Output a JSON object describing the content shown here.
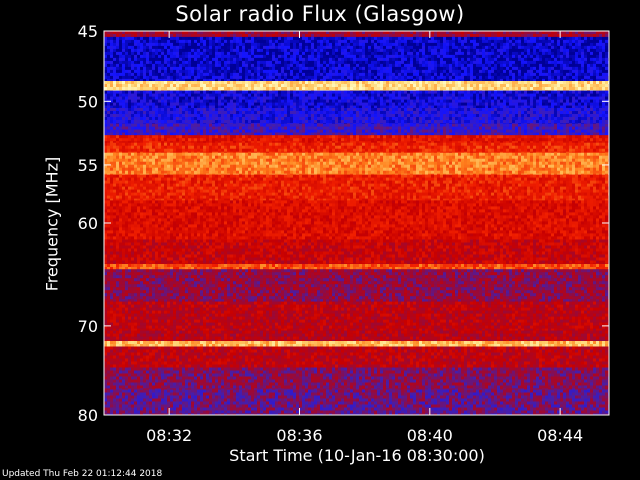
{
  "chart_data": {
    "type": "heatmap",
    "title": "Solar radio Flux (Glasgow)",
    "ylabel": "Frequency [MHz]",
    "xlabel": "Start Time (10-Jan-16 08:30:00)",
    "ylim": [
      45,
      80
    ],
    "y_ticks": [
      45,
      50,
      55,
      60,
      70,
      80
    ],
    "y_tick_labels": [
      "45",
      "50",
      "55",
      "60",
      "70",
      "80"
    ],
    "x_range_minutes": [
      0,
      15.5
    ],
    "x_ticks_minutes": [
      2,
      6,
      10,
      14
    ],
    "x_tick_labels": [
      "08:32",
      "08:36",
      "08:40",
      "08:44"
    ],
    "y_scale": "log",
    "colormap": "blue-red-yellow",
    "bands": [
      {
        "from": 45.0,
        "to": 45.4,
        "level": 0.35
      },
      {
        "from": 45.4,
        "to": 48.5,
        "level": 0.05
      },
      {
        "from": 48.5,
        "to": 49.2,
        "level": 0.9
      },
      {
        "from": 49.2,
        "to": 50.5,
        "level": 0.08
      },
      {
        "from": 50.5,
        "to": 51.7,
        "level": 0.12
      },
      {
        "from": 51.7,
        "to": 52.6,
        "level": 0.18
      },
      {
        "from": 52.6,
        "to": 53.2,
        "level": 0.55
      },
      {
        "from": 53.2,
        "to": 54.0,
        "level": 0.6
      },
      {
        "from": 54.0,
        "to": 55.8,
        "level": 0.75
      },
      {
        "from": 55.8,
        "to": 58.0,
        "level": 0.58
      },
      {
        "from": 58.0,
        "to": 61.5,
        "level": 0.52
      },
      {
        "from": 61.5,
        "to": 63.8,
        "level": 0.45
      },
      {
        "from": 63.8,
        "to": 64.3,
        "level": 0.68
      },
      {
        "from": 64.3,
        "to": 67.5,
        "level": 0.32
      },
      {
        "from": 67.5,
        "to": 70.5,
        "level": 0.42
      },
      {
        "from": 70.5,
        "to": 71.6,
        "level": 0.4
      },
      {
        "from": 71.6,
        "to": 72.2,
        "level": 0.85
      },
      {
        "from": 72.2,
        "to": 74.5,
        "level": 0.42
      },
      {
        "from": 74.5,
        "to": 77.0,
        "level": 0.3
      },
      {
        "from": 77.0,
        "to": 80.0,
        "level": 0.26
      }
    ],
    "annotations_bottom_left": "Updated Thu Feb 22 01:12:44 2018"
  }
}
